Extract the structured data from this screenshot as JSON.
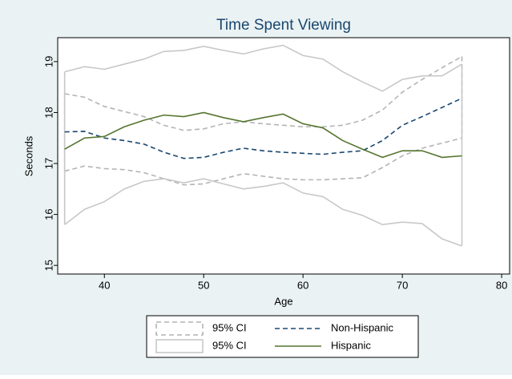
{
  "chart_data": {
    "type": "line",
    "title": "Time Spent Viewing",
    "x_label": "Age",
    "y_label": "Seconds",
    "x": [
      36,
      38,
      40,
      42,
      44,
      46,
      48,
      50,
      52,
      54,
      56,
      58,
      60,
      62,
      64,
      66,
      68,
      70,
      72,
      74,
      76
    ],
    "xlim": [
      35.3,
      80.8
    ],
    "xticks": [
      40,
      50,
      60,
      70,
      80
    ],
    "ylim": [
      14.83,
      19.47
    ],
    "yticks": [
      15,
      16,
      17,
      18,
      19
    ],
    "bands": [
      {
        "name": "95% CI",
        "color": "#b4b4b4",
        "dashed": true,
        "upper": [
          18.37,
          18.3,
          18.12,
          18.02,
          17.92,
          17.75,
          17.65,
          17.68,
          17.78,
          17.82,
          17.78,
          17.75,
          17.72,
          17.72,
          17.75,
          17.85,
          18.05,
          18.4,
          18.65,
          18.88,
          19.1
        ],
        "lower": [
          16.85,
          16.95,
          16.9,
          16.88,
          16.82,
          16.7,
          16.58,
          16.6,
          16.7,
          16.8,
          16.75,
          16.7,
          16.68,
          16.68,
          16.7,
          16.72,
          16.92,
          17.15,
          17.3,
          17.4,
          17.5
        ]
      },
      {
        "name": "95% CI",
        "color": "#c8c8c8",
        "dashed": false,
        "upper": [
          18.8,
          18.9,
          18.85,
          18.95,
          19.05,
          19.2,
          19.22,
          19.3,
          19.22,
          19.15,
          19.25,
          19.32,
          19.12,
          19.05,
          18.8,
          18.6,
          18.42,
          18.65,
          18.72,
          18.72,
          18.95
        ],
        "lower": [
          15.8,
          16.1,
          16.25,
          16.5,
          16.65,
          16.7,
          16.62,
          16.7,
          16.6,
          16.5,
          16.55,
          16.62,
          16.42,
          16.35,
          16.1,
          15.98,
          15.8,
          15.85,
          15.82,
          15.52,
          15.38
        ]
      }
    ],
    "series": [
      {
        "name": "Non-Hispanic",
        "color": "#1a476f",
        "dashed": true,
        "values": [
          17.62,
          17.63,
          17.5,
          17.45,
          17.38,
          17.22,
          17.1,
          17.12,
          17.22,
          17.3,
          17.25,
          17.22,
          17.2,
          17.18,
          17.22,
          17.25,
          17.45,
          17.75,
          17.92,
          18.1,
          18.28
        ]
      },
      {
        "name": "Hispanic",
        "color": "#55752f",
        "dashed": false,
        "values": [
          17.28,
          17.5,
          17.53,
          17.72,
          17.85,
          17.95,
          17.92,
          18.0,
          17.9,
          17.82,
          17.9,
          17.97,
          17.78,
          17.7,
          17.45,
          17.28,
          17.12,
          17.25,
          17.25,
          17.12,
          17.15
        ]
      }
    ]
  }
}
